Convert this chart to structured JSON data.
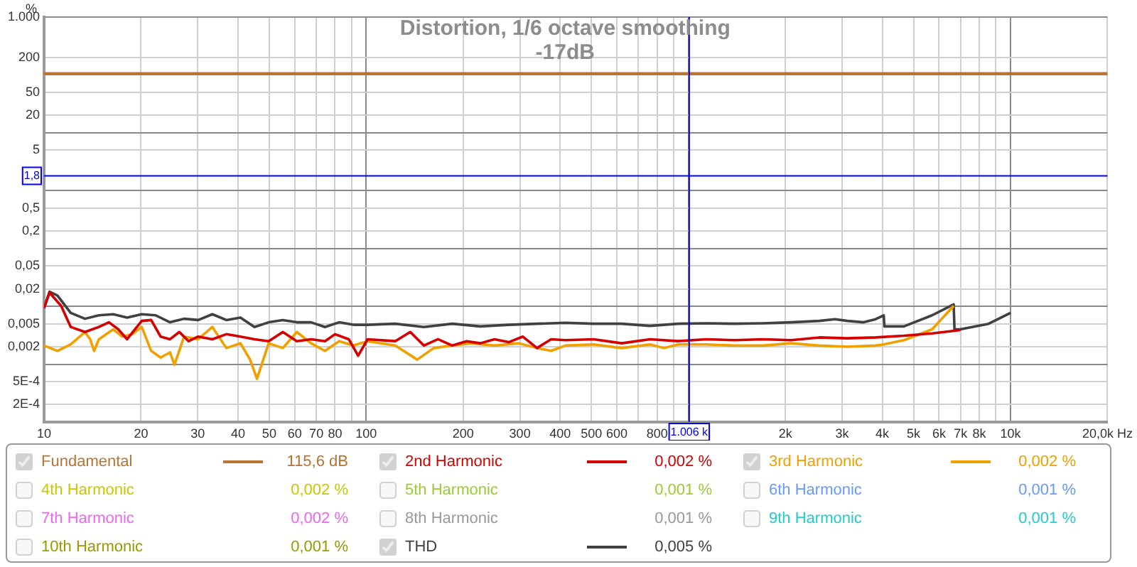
{
  "chart_data": {
    "type": "line",
    "title": "Distortion, 1/6 octave smoothing",
    "subtitle": "-17dB",
    "ylabel": "%",
    "log": "xy",
    "grid": true,
    "legend": "bottom",
    "marker": "none",
    "line_style": "solid",
    "xlim": [
      10,
      20000
    ],
    "ylim": [
      0.0001,
      1000
    ],
    "xticks": [
      10,
      20,
      30,
      40,
      50,
      60,
      70,
      80,
      {
        "value": 90,
        "label": null
      },
      100,
      200,
      300,
      400,
      500,
      600,
      {
        "value": 700,
        "label": null
      },
      800,
      {
        "value": 900,
        "label": null
      },
      {
        "value": 1000,
        "label": null
      },
      {
        "value": 2000,
        "label": "2k"
      },
      {
        "value": 3000,
        "label": "3k"
      },
      {
        "value": 4000,
        "label": "4k"
      },
      {
        "value": 5000,
        "label": "5k"
      },
      {
        "value": 6000,
        "label": "6k"
      },
      {
        "value": 7000,
        "label": "7k"
      },
      {
        "value": 8000,
        "label": "8k"
      },
      {
        "value": 9000,
        "label": null
      },
      {
        "value": 10000,
        "label": "10k"
      },
      {
        "value": 20000,
        "label": "20,0k Hz"
      }
    ],
    "yticks": [
      {
        "value": 1000,
        "label": "1.000"
      },
      200,
      {
        "value": 100,
        "label": null
      },
      50,
      20,
      {
        "value": 10,
        "label": null
      },
      5,
      {
        "value": 1,
        "label": null
      },
      {
        "value": 0.5,
        "label": "0,5"
      },
      {
        "value": 0.2,
        "label": "0,2"
      },
      {
        "value": 0.1,
        "label": null
      },
      {
        "value": 0.05,
        "label": "0,05"
      },
      {
        "value": 0.02,
        "label": "0,02"
      },
      {
        "value": 0.01,
        "label": null
      },
      {
        "value": 0.005,
        "label": "0,005"
      },
      {
        "value": 0.002,
        "label": "0,002"
      },
      {
        "value": 0.001,
        "label": null
      },
      {
        "value": 0.0005,
        "label": "5E-4"
      },
      {
        "value": 0.0002,
        "label": "2E-4"
      }
    ],
    "ref_lines": [
      {
        "axis": "y",
        "value": 1.8,
        "label": "1,8",
        "color": "#0000ff"
      },
      {
        "axis": "x",
        "value": 1006,
        "label": "1.006 k",
        "color": "#0000ff"
      }
    ],
    "annotations": [
      "115,6 dB",
      "0,002 %",
      "0,002 %",
      "0,002 %",
      "0,001 %",
      "0,001 %",
      "0,002 %",
      "0,001 %",
      "0,001 %",
      "0,001 %",
      "0,005 %"
    ],
    "series": [
      {
        "name": "Fundamental",
        "color": "#b87333",
        "x": [
          10,
          20000
        ],
        "values": [
          106,
          106
        ]
      },
      {
        "name": "2nd Harmonic",
        "color": "#d40000",
        "x": [
          10,
          10.4,
          11.3,
          12.1,
          13.4,
          14.8,
          15.9,
          17,
          18.1,
          20.1,
          21.5,
          23,
          24.6,
          26.3,
          28.1,
          30.1,
          33.3,
          36.8,
          40.7,
          45,
          49.8,
          55.1,
          60.9,
          67.4,
          74.5,
          80,
          88.3,
          94.4,
          101,
          123,
          137,
          151,
          167,
          185,
          205,
          226,
          250,
          277,
          306,
          339,
          375,
          415,
          508,
          621,
          760,
          930,
          1137,
          1391,
          1702,
          2083,
          2548,
          3118,
          3814,
          4667,
          5710,
          6986
        ],
        "values": [
          0.0093,
          0.0173,
          0.0102,
          0.0044,
          0.0036,
          0.0044,
          0.0053,
          0.004,
          0.0027,
          0.0056,
          0.0058,
          0.003,
          0.0027,
          0.0036,
          0.0025,
          0.003,
          0.0027,
          0.0033,
          0.003,
          0.0027,
          0.0025,
          0.0036,
          0.0025,
          0.0027,
          0.0025,
          0.0033,
          0.0027,
          0.0014,
          0.0027,
          0.0025,
          0.0036,
          0.0021,
          0.0027,
          0.0021,
          0.0025,
          0.0023,
          0.0027,
          0.0024,
          0.003,
          0.0019,
          0.0027,
          0.0026,
          0.0027,
          0.0023,
          0.0027,
          0.0025,
          0.0027,
          0.0026,
          0.0027,
          0.0026,
          0.0029,
          0.0028,
          0.0029,
          0.0031,
          0.0034,
          0.0039
        ]
      },
      {
        "name": "3rd Harmonic",
        "color": "#f0a000",
        "x": [
          10,
          11,
          12.1,
          13.4,
          13.9,
          14.3,
          14.8,
          16.4,
          17.5,
          18.8,
          20.1,
          21.5,
          23,
          24.6,
          25.4,
          27.2,
          30.1,
          33.3,
          36.8,
          40.7,
          43.6,
          45.8,
          49.8,
          55.1,
          60.9,
          67.4,
          74.5,
          82.4,
          91.2,
          101,
          123,
          144,
          162,
          185,
          212,
          250,
          297,
          339,
          375,
          415,
          508,
          621,
          760,
          840,
          930,
          1137,
          1391,
          1702,
          2083,
          2548,
          3118,
          3814,
          4040,
          4667,
          5710,
          6660
        ],
        "values": [
          0.0021,
          0.0017,
          0.0022,
          0.0036,
          0.0027,
          0.0017,
          0.0027,
          0.004,
          0.003,
          0.0033,
          0.0044,
          0.0017,
          0.0013,
          0.0016,
          0.00098,
          0.003,
          0.0027,
          0.0044,
          0.0019,
          0.0023,
          0.0012,
          0.00056,
          0.0023,
          0.0019,
          0.0036,
          0.0023,
          0.0017,
          0.0025,
          0.0021,
          0.0025,
          0.0021,
          0.0012,
          0.0019,
          0.0021,
          0.0023,
          0.0021,
          0.0023,
          0.0019,
          0.0017,
          0.0021,
          0.0022,
          0.0019,
          0.0022,
          0.0019,
          0.0022,
          0.0022,
          0.0021,
          0.0021,
          0.0023,
          0.0021,
          0.002,
          0.0021,
          0.0022,
          0.0026,
          0.004,
          0.0102
        ]
      },
      {
        "name": "4th Harmonic",
        "color": "#c8c800"
      },
      {
        "name": "5th Harmonic",
        "color": "#99cc33"
      },
      {
        "name": "6th Harmonic",
        "color": "#6699ff"
      },
      {
        "name": "7th Harmonic",
        "color": "#ee66ee"
      },
      {
        "name": "8th Harmonic",
        "color": "#999999"
      },
      {
        "name": "9th Harmonic",
        "color": "#22cccc"
      },
      {
        "name": "10th Harmonic",
        "color": "#999900"
      },
      {
        "name": "THD",
        "color": "#404040",
        "x": [
          10,
          10.4,
          11,
          12.1,
          13.4,
          14.8,
          16.4,
          18.1,
          20.1,
          22.2,
          24.6,
          27.2,
          30.1,
          33.3,
          36.8,
          40.7,
          45,
          49.8,
          55.1,
          60.9,
          67.4,
          74.5,
          82.4,
          91.2,
          101,
          123,
          151,
          185,
          226,
          277,
          339,
          415,
          508,
          621,
          760,
          930,
          1137,
          1391,
          1702,
          2083,
          2548,
          2850,
          3118,
          3500,
          3814,
          4040,
          4060,
          4667,
          5710,
          6660,
          6700,
          6986,
          8548,
          10000
        ],
        "values": [
          0.0093,
          0.0179,
          0.0154,
          0.0077,
          0.0061,
          0.007,
          0.0073,
          0.0064,
          0.0073,
          0.007,
          0.0053,
          0.0061,
          0.0058,
          0.0073,
          0.0058,
          0.0064,
          0.0044,
          0.0053,
          0.0058,
          0.0053,
          0.0053,
          0.0044,
          0.0053,
          0.0048,
          0.0048,
          0.005,
          0.0044,
          0.005,
          0.0045,
          0.0048,
          0.005,
          0.0052,
          0.005,
          0.005,
          0.0046,
          0.005,
          0.0051,
          0.005,
          0.0051,
          0.0053,
          0.0056,
          0.006,
          0.0056,
          0.0053,
          0.006,
          0.007,
          0.0045,
          0.0045,
          0.007,
          0.0108,
          0.004,
          0.004,
          0.005,
          0.0077
        ]
      }
    ]
  }
}
